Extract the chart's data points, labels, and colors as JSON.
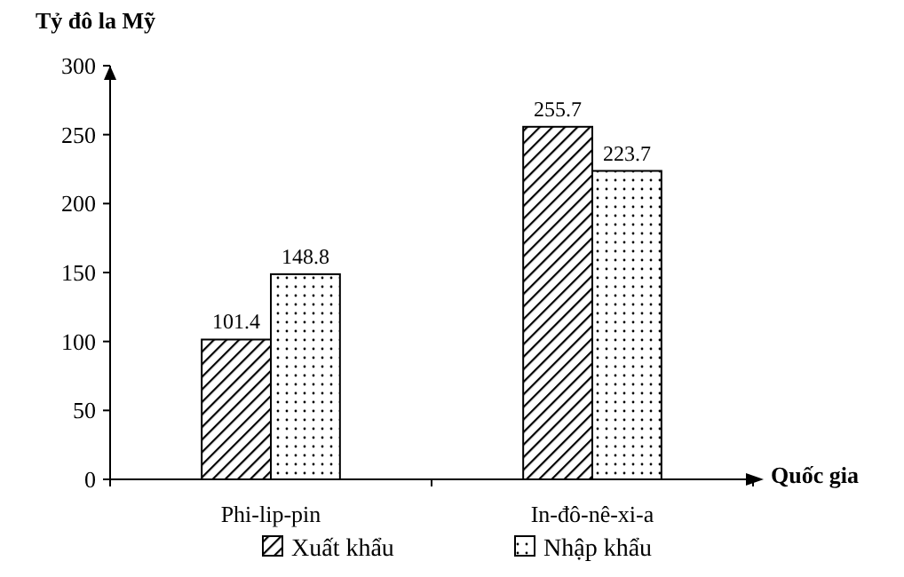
{
  "chart_data": {
    "type": "bar",
    "ylabel": "Tỷ đô la Mỹ",
    "xlabel": "Quốc gia",
    "categories": [
      "Phi-lip-pin",
      "In-đô-nê-xi-a"
    ],
    "series": [
      {
        "name": "Xuất khẩu",
        "color": "#000000",
        "values": [
          101.4,
          255.7
        ]
      },
      {
        "name": "Nhập khẩu",
        "color": "#000000",
        "values": [
          148.8,
          223.7
        ]
      }
    ],
    "ylim": [
      0,
      300
    ],
    "yticks": [
      0,
      50,
      100,
      150,
      200,
      250,
      300
    ],
    "grid": false,
    "legend": "bottom",
    "data_labels": true
  }
}
